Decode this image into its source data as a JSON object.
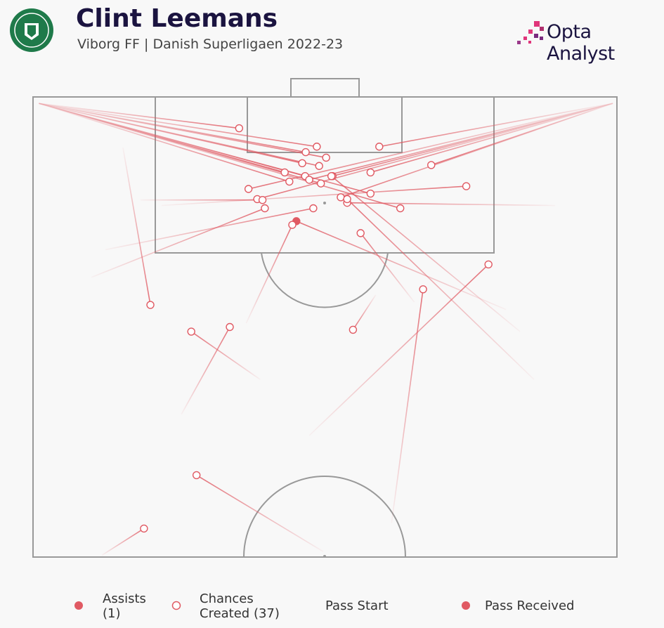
{
  "header": {
    "title": "Clint Leemans",
    "subtitle": "Viborg FF | Danish Superligaen 2022-23",
    "brand": "Opta Analyst"
  },
  "chart_data": {
    "type": "pass-map",
    "xlim": [
      0,
      100
    ],
    "ylim": [
      50,
      100
    ],
    "color": "#e05a63",
    "series": [
      {
        "name": "Assists (1)",
        "filled": true,
        "x_start": [
          81.0
        ],
        "y_start": [
          76.9
        ],
        "x_end": [
          45.1
        ],
        "y_end": [
          86.5
        ]
      },
      {
        "name": "Chances Created (37)",
        "filled": false,
        "x_start": [
          1.0,
          1.0,
          1.0,
          1.0,
          1.0,
          1.0,
          1.0,
          1.0,
          1.0,
          1.0,
          1.0,
          1.0,
          99.3,
          99.3,
          99.3,
          99.3,
          99.3,
          99.3,
          99.3,
          99.3,
          89.4,
          18.4,
          10.0,
          12.4,
          15.4,
          38.9,
          25.4,
          58.7,
          61.4,
          47.3,
          49.7,
          11.8,
          36.5,
          85.8,
          83.4,
          22.0,
          65.3
        ],
        "y_start": [
          99.3,
          99.3,
          99.3,
          99.3,
          99.3,
          99.3,
          99.3,
          99.3,
          99.3,
          99.3,
          99.3,
          99.3,
          99.3,
          99.3,
          99.3,
          99.3,
          99.3,
          99.3,
          99.3,
          99.3,
          88.2,
          88.8,
          80.4,
          83.4,
          94.5,
          69.3,
          65.5,
          78.5,
          53.7,
          63.2,
          50.6,
          50.2,
          75.4,
          69.3,
          74.5,
          88.2,
          77.7
        ],
        "x_end": [
          35.3,
          48.6,
          46.7,
          50.2,
          46.1,
          49.0,
          43.1,
          46.6,
          43.9,
          49.3,
          57.8,
          62.9,
          59.3,
          68.2,
          57.8,
          51.3,
          47.3,
          52.7,
          38.4,
          36.9,
          53.8,
          39.3,
          39.7,
          48.0,
          20.1,
          27.1,
          33.7,
          54.8,
          66.8,
          78.0,
          28.0,
          19.0,
          44.4,
          53.8,
          51.1,
          74.2,
          56.1
        ],
        "y_end": [
          96.6,
          94.6,
          94.0,
          93.4,
          92.8,
          92.5,
          91.8,
          91.4,
          90.8,
          90.6,
          89.5,
          87.9,
          94.6,
          92.6,
          91.8,
          91.4,
          91.0,
          89.1,
          88.9,
          90.0,
          88.5,
          88.8,
          87.9,
          87.9,
          77.4,
          74.5,
          75.0,
          74.7,
          79.1,
          81.8,
          58.9,
          53.1,
          86.1,
          88.9,
          91.4,
          90.3,
          85.2
        ]
      }
    ],
    "legend": {
      "start": "Pass Start",
      "end": "Pass Received"
    }
  }
}
